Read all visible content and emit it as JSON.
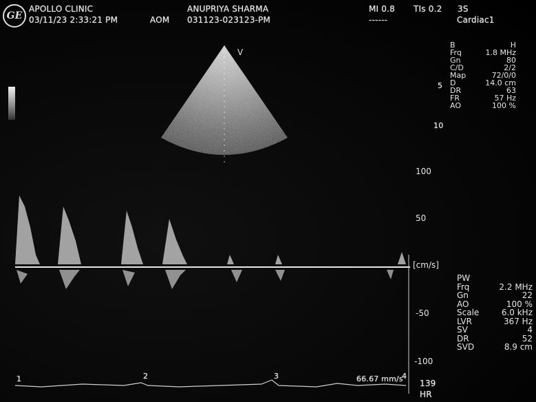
{
  "header": {
    "clinic": "APOLLO CLINIC",
    "patient": "ANUPRIYA SHARMA",
    "datetime": "03/11/23 2:33:21 PM",
    "operator": "AOM",
    "study_id": "031123-023123-PM",
    "mi": "MI 0.8",
    "tis": "TIs 0.2",
    "probe": "3S",
    "preset_dashes": "------",
    "preset": "Cardiac1"
  },
  "logo": "GE",
  "bmode_params": [
    {
      "k": "B",
      "v": "H"
    },
    {
      "k": "Frq",
      "v": "1.8 MHz"
    },
    {
      "k": "Gn",
      "v": "80"
    },
    {
      "k": "C/D",
      "v": "2/2"
    },
    {
      "k": "Map",
      "v": "72/0/0"
    },
    {
      "k": "D",
      "v": "14.0 cm"
    },
    {
      "k": "DR",
      "v": "63"
    },
    {
      "k": "FR",
      "v": "57 Hz"
    },
    {
      "k": "AO",
      "v": "100 %"
    }
  ],
  "depth_marks": {
    "m5": "5",
    "m10": "10"
  },
  "velocity_scale": {
    "p100": "100",
    "p50": "50",
    "unit": "[cm/s]",
    "n50": "-50",
    "n100": "-100"
  },
  "pw_params": {
    "title": "PW",
    "rows": [
      {
        "k": "Frq",
        "v": "2.2 MHz"
      },
      {
        "k": "Gn",
        "v": "22"
      },
      {
        "k": "AO",
        "v": "100 %"
      },
      {
        "k": "Scale",
        "v": "6.0 kHz"
      },
      {
        "k": "LVR",
        "v": "367 Hz"
      },
      {
        "k": "SV",
        "v": "4"
      },
      {
        "k": "DR",
        "v": "52"
      },
      {
        "k": "SVD",
        "v": "8.9 cm"
      }
    ]
  },
  "sweep": {
    "speed": "66.67 mm/s"
  },
  "hr": {
    "value": "139",
    "label": "HR"
  },
  "ecg_marks": [
    "1",
    "2",
    "3",
    "4"
  ],
  "colors": {
    "text": "#e6e6e6",
    "background": "#000000"
  }
}
